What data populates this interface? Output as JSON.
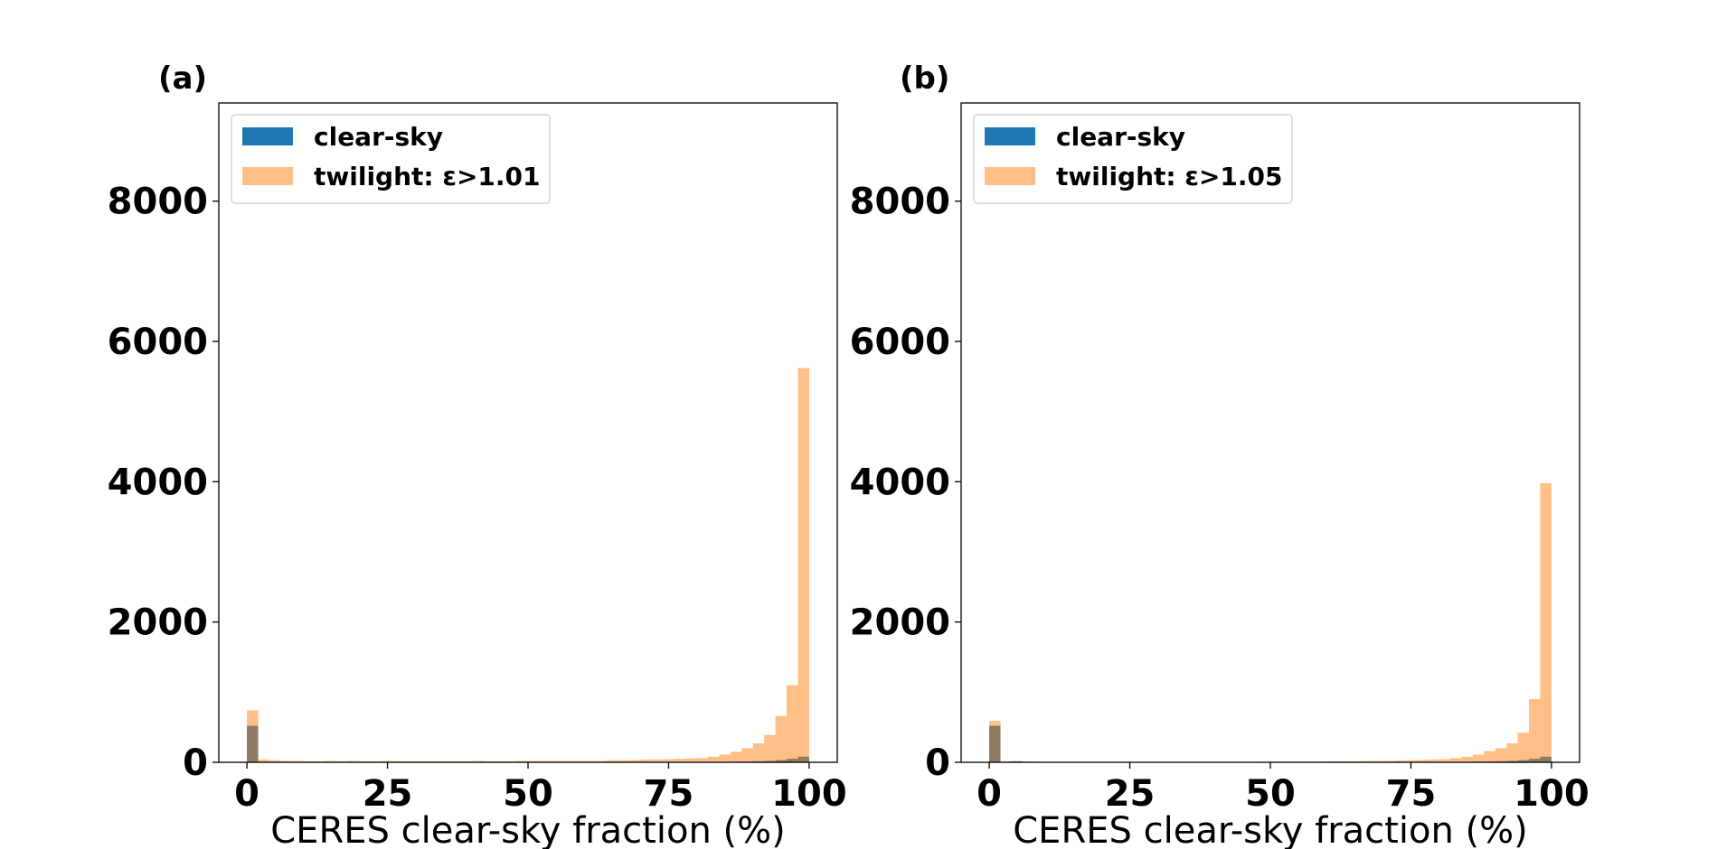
{
  "chart_data": [
    {
      "type": "bar",
      "panel_label": "(a)",
      "xlabel": "CERES clear-sky fraction (%)",
      "ylabel": "",
      "xlim": [
        -5,
        105
      ],
      "ylim": [
        0,
        9400
      ],
      "xticks": [
        0,
        25,
        50,
        75,
        100
      ],
      "yticks": [
        0,
        2000,
        4000,
        6000,
        8000
      ],
      "bin_width": 2,
      "legend_position": "upper-left",
      "series": [
        {
          "name": "clear-sky",
          "color": "#1f77b4",
          "opacity": 1.0,
          "values": [
            520,
            8,
            4,
            3,
            3,
            3,
            3,
            3,
            3,
            3,
            3,
            3,
            3,
            3,
            3,
            3,
            3,
            3,
            3,
            3,
            3,
            3,
            3,
            3,
            3,
            3,
            3,
            3,
            3,
            3,
            3,
            3,
            3,
            3,
            3,
            3,
            3,
            3,
            3,
            3,
            4,
            5,
            6,
            8,
            10,
            15,
            20,
            30,
            50,
            80
          ]
        },
        {
          "name": "twilight: ε>1.01",
          "color": "#ff7f0e",
          "opacity": 0.5,
          "values": [
            740,
            40,
            30,
            20,
            20,
            15,
            15,
            20,
            15,
            20,
            15,
            15,
            20,
            15,
            15,
            15,
            15,
            15,
            15,
            15,
            20,
            15,
            15,
            15,
            20,
            20,
            20,
            20,
            20,
            20,
            20,
            20,
            30,
            30,
            35,
            40,
            40,
            45,
            50,
            55,
            60,
            80,
            110,
            150,
            200,
            270,
            390,
            660,
            1100,
            5620
          ]
        }
      ]
    },
    {
      "type": "bar",
      "panel_label": "(b)",
      "xlabel": "CERES clear-sky fraction (%)",
      "ylabel": "",
      "xlim": [
        -5,
        105
      ],
      "ylim": [
        0,
        9400
      ],
      "xticks": [
        0,
        25,
        50,
        75,
        100
      ],
      "yticks": [
        0,
        2000,
        4000,
        6000,
        8000
      ],
      "bin_width": 2,
      "legend_position": "upper-left",
      "series": [
        {
          "name": "clear-sky",
          "color": "#1f77b4",
          "opacity": 1.0,
          "values": [
            520,
            8,
            15,
            3,
            3,
            3,
            3,
            3,
            3,
            3,
            3,
            3,
            3,
            3,
            3,
            3,
            3,
            3,
            3,
            3,
            3,
            3,
            3,
            3,
            3,
            3,
            3,
            3,
            3,
            3,
            3,
            3,
            3,
            3,
            3,
            3,
            3,
            3,
            3,
            3,
            4,
            5,
            6,
            8,
            10,
            15,
            20,
            30,
            50,
            80
          ]
        },
        {
          "name": "twilight: ε>1.05",
          "color": "#ff7f0e",
          "opacity": 0.5,
          "values": [
            590,
            15,
            10,
            10,
            5,
            5,
            5,
            5,
            5,
            5,
            5,
            5,
            5,
            5,
            5,
            5,
            5,
            5,
            5,
            5,
            5,
            5,
            5,
            5,
            8,
            8,
            8,
            8,
            8,
            10,
            12,
            15,
            15,
            18,
            20,
            20,
            25,
            30,
            35,
            40,
            45,
            60,
            80,
            110,
            160,
            200,
            270,
            420,
            900,
            3980
          ]
        }
      ]
    }
  ]
}
